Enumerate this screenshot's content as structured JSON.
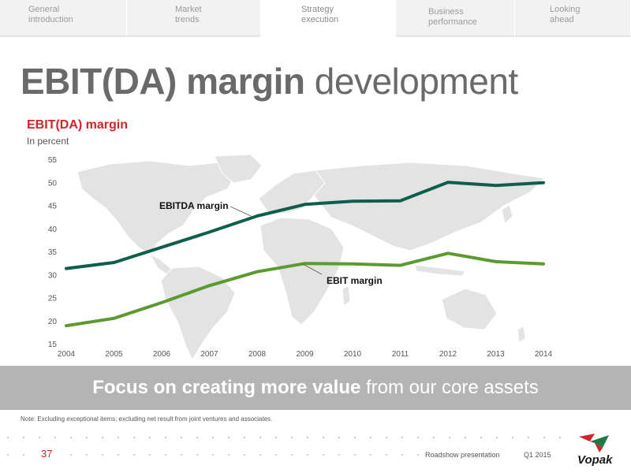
{
  "tabs": [
    {
      "line1": "General",
      "line2": "introduction",
      "active": false
    },
    {
      "line1": "Market",
      "line2": "trends",
      "active": false
    },
    {
      "line1": "Strategy",
      "line2": "execution",
      "active": true
    },
    {
      "line1": "Business",
      "line2": "performance",
      "active": false
    },
    {
      "line1": "Looking",
      "line2": "ahead",
      "active": false
    }
  ],
  "page": {
    "title_bold": "EBIT(DA) margin",
    "title_light": "development",
    "banner_bold": "Focus on creating more value",
    "banner_light": "from our core assets",
    "note": "Note: Excluding exceptional items; excluding net result from joint ventures and associates.",
    "page_number": "37",
    "footer_label": "Roadshow presentation",
    "footer_period": "Q1 2015",
    "logo_text": "Vopak"
  },
  "colors": {
    "ebitda": "#0e5e4e",
    "ebit": "#5a9a2e",
    "accent": "#d0232a",
    "map": "#e3e3e3"
  },
  "chart_data": {
    "type": "line",
    "title": "EBIT(DA) margin",
    "subtitle": "In percent",
    "x": [
      2004,
      2005,
      2006,
      2007,
      2008,
      2009,
      2010,
      2011,
      2012,
      2013,
      2014
    ],
    "ylim": [
      15,
      55
    ],
    "yticks": [
      15,
      20,
      25,
      30,
      35,
      40,
      45,
      50,
      55
    ],
    "grid": false,
    "series": [
      {
        "name": "EBITDA margin",
        "values": [
          31.3,
          32.6,
          35.9,
          39.2,
          42.7,
          45.2,
          45.9,
          46.0,
          50.0,
          49.3,
          49.9
        ]
      },
      {
        "name": "EBIT margin",
        "values": [
          18.9,
          20.5,
          23.9,
          27.6,
          30.6,
          32.4,
          32.3,
          32.0,
          34.6,
          32.8,
          32.3
        ]
      }
    ]
  }
}
